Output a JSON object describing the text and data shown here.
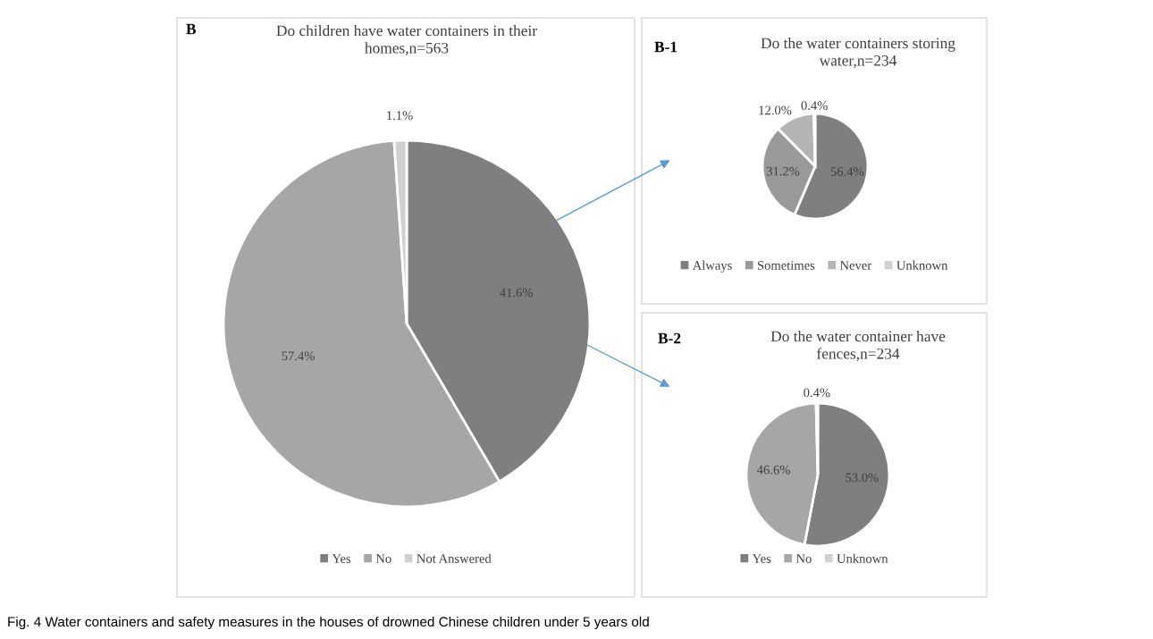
{
  "chart_data": [
    {
      "type": "pie",
      "title": "Do children have water containers in their homes,n=563",
      "categories": [
        "Yes",
        "No",
        "Not Answered"
      ],
      "values": [
        41.6,
        57.4,
        1.1
      ],
      "colors": [
        "#7f7f7f",
        "#a6a6a6",
        "#d0d0d0"
      ],
      "value_labels": [
        "41.6%",
        "57.4%",
        "1.1%"
      ],
      "legend": "bottom",
      "annotations": [
        "B",
        "Fig. 4 Water containers and safety measures in the houses of drowned Chinese children under 5 years old"
      ]
    },
    {
      "type": "pie",
      "title": "Do the water containers storing water,n=234",
      "categories": [
        "Always",
        "Sometimes",
        "Never",
        "Unknown"
      ],
      "values": [
        56.4,
        31.2,
        12.0,
        0.4
      ],
      "colors": [
        "#7f7f7f",
        "#999999",
        "#b4b4b4",
        "#d0d0d0"
      ],
      "value_labels": [
        "56.4%",
        "31.2%",
        "12.0%",
        "0.4%"
      ],
      "legend": "bottom",
      "annotations": [
        "B-1"
      ]
    },
    {
      "type": "pie",
      "title": "Do the water container have fences,n=234",
      "categories": [
        "Yes",
        "No",
        "Unknown"
      ],
      "values": [
        53.0,
        46.6,
        0.4
      ],
      "colors": [
        "#7f7f7f",
        "#a6a6a6",
        "#d0d0d0"
      ],
      "value_labels": [
        "53.0%",
        "46.6%",
        "0.4%"
      ],
      "legend": "bottom",
      "annotations": [
        "B-2"
      ]
    }
  ]
}
